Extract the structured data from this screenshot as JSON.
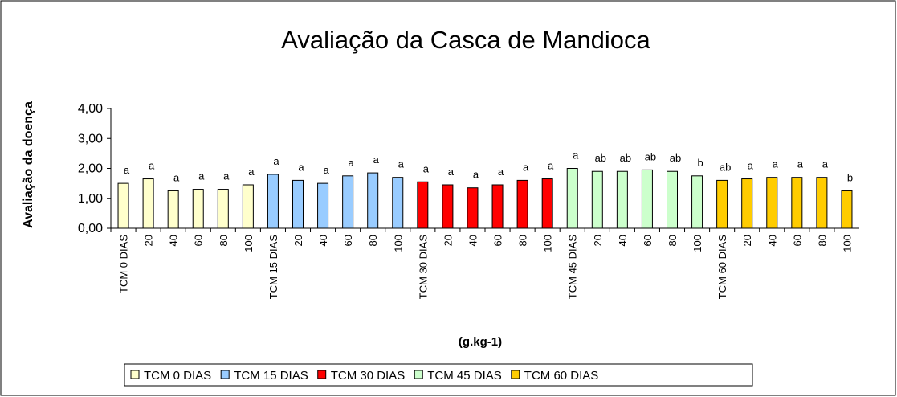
{
  "chart_data": {
    "type": "bar",
    "title": "Avaliação da Casca de Mandioca",
    "y_label": "Avaliação da doença",
    "x_label": "(g.kg-1)",
    "ylim": [
      0,
      4
    ],
    "yticks": [
      {
        "value": 0,
        "label": "0,00"
      },
      {
        "value": 1,
        "label": "1,00"
      },
      {
        "value": 2,
        "label": "2,00"
      },
      {
        "value": 3,
        "label": "3,00"
      },
      {
        "value": 4,
        "label": "4,00"
      }
    ],
    "series": [
      {
        "name": "TCM 0 DIAS",
        "color": "#ffffcc",
        "categories": [
          "TCM 0 DIAS",
          "20",
          "40",
          "60",
          "80",
          "100"
        ],
        "values": [
          1.5,
          1.65,
          1.25,
          1.3,
          1.3,
          1.45
        ],
        "annotations": [
          "a",
          "a",
          "a",
          "a",
          "a",
          "a"
        ]
      },
      {
        "name": "TCM 15 DIAS",
        "color": "#99ccff",
        "categories": [
          "TCM 15 DIAS",
          "20",
          "40",
          "60",
          "80",
          "100"
        ],
        "values": [
          1.8,
          1.6,
          1.5,
          1.75,
          1.85,
          1.7
        ],
        "annotations": [
          "a",
          "a",
          "a",
          "a",
          "a",
          "a"
        ]
      },
      {
        "name": "TCM 30 DIAS",
        "color": "#ff0000",
        "categories": [
          "TCM 30 DIAS",
          "20",
          "40",
          "60",
          "80",
          "100"
        ],
        "values": [
          1.55,
          1.45,
          1.35,
          1.45,
          1.6,
          1.65
        ],
        "annotations": [
          "a",
          "a",
          "a",
          "a",
          "a",
          "a"
        ]
      },
      {
        "name": "TCM 45 DIAS",
        "color": "#ccffcc",
        "categories": [
          "TCM 45 DIAS",
          "20",
          "40",
          "60",
          "80",
          "100"
        ],
        "values": [
          2.0,
          1.9,
          1.9,
          1.95,
          1.9,
          1.75
        ],
        "annotations": [
          "a",
          "ab",
          "ab",
          "ab",
          "ab",
          "b"
        ]
      },
      {
        "name": "TCM 60 DIAS",
        "color": "#ffcc00",
        "categories": [
          "TCM 60 DIAS",
          "20",
          "40",
          "60",
          "80",
          "100"
        ],
        "values": [
          1.6,
          1.65,
          1.7,
          1.7,
          1.7,
          1.25
        ],
        "annotations": [
          "ab",
          "a",
          "a",
          "a",
          "a",
          "b"
        ]
      }
    ]
  }
}
